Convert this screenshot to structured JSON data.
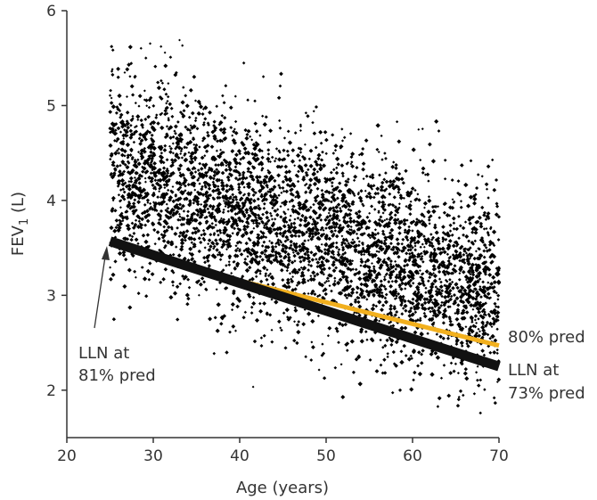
{
  "chart_data": {
    "type": "scatter",
    "title": "",
    "xlabel": "Age (years)",
    "ylabel_main": "FEV",
    "ylabel_sub": "1",
    "ylabel_unit": " (L)",
    "xlim": [
      20,
      70
    ],
    "ylim": [
      1.5,
      6
    ],
    "xticks": [
      20,
      30,
      40,
      50,
      60,
      70
    ],
    "yticks": [
      2,
      3,
      4,
      5,
      6
    ],
    "scatter": {
      "name": "FEV1 measurements",
      "n_points": 4200,
      "x_range": [
        25,
        70
      ],
      "trend_start": [
        25,
        4.35
      ],
      "trend_end": [
        70,
        3.0
      ],
      "spread_sd": 0.52,
      "color": "#000000"
    },
    "series": [
      {
        "name": "80% pred",
        "x": [
          38,
          70
        ],
        "y": [
          3.2,
          2.47
        ],
        "color": "#f2b01e"
      },
      {
        "name": "LLN",
        "x": [
          25,
          70
        ],
        "y": [
          3.57,
          2.25
        ],
        "color": "#111111"
      }
    ],
    "annotations": {
      "llnLeft1": "LLN at",
      "llnLeft2": "81% pred",
      "pred80": "80% pred",
      "llnRight1": "LLN at",
      "llnRight2": "73% pred"
    }
  }
}
